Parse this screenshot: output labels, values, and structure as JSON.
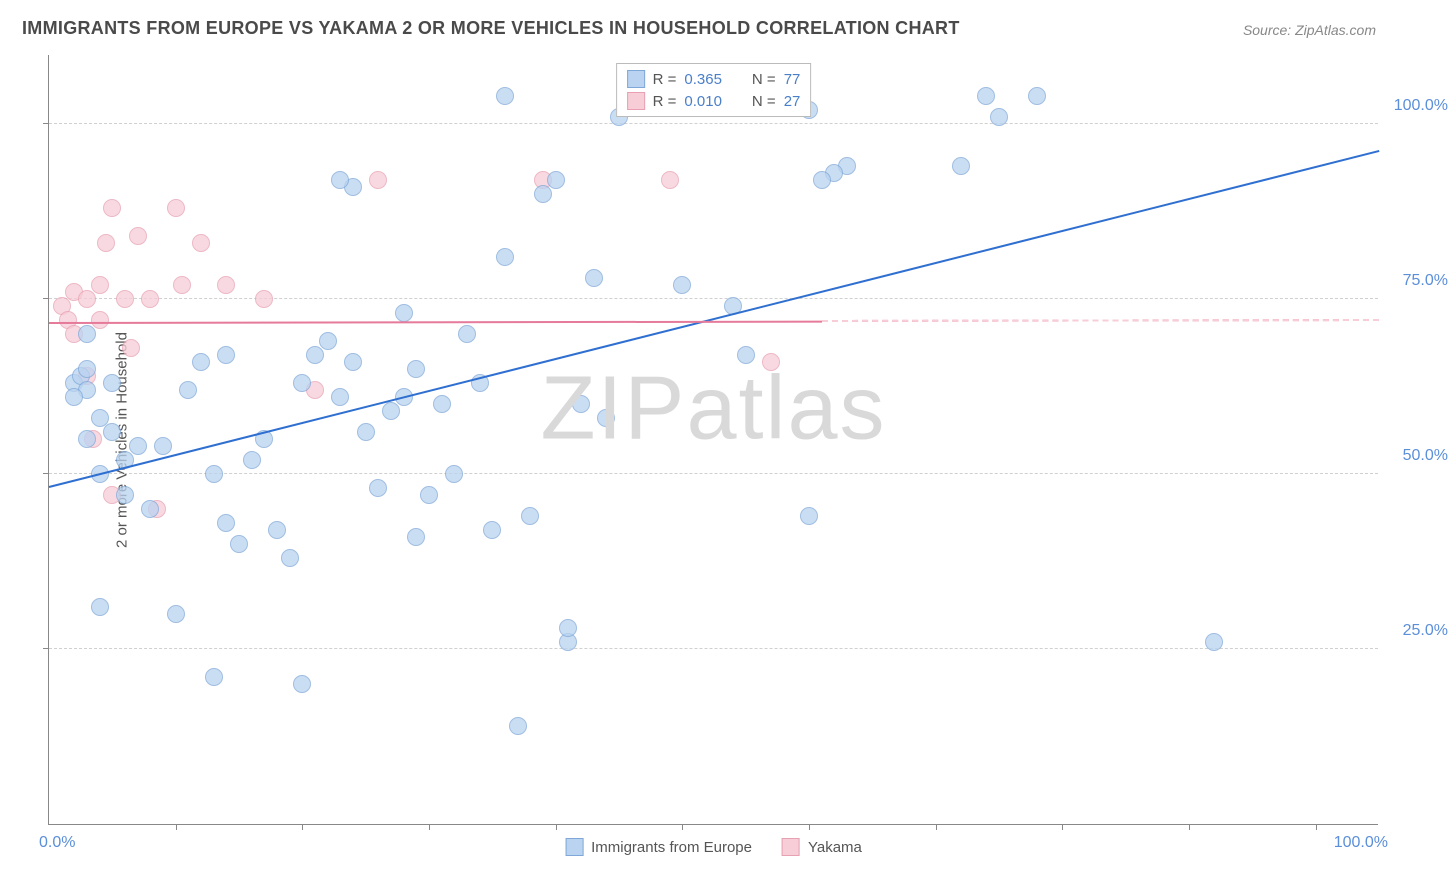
{
  "title": "IMMIGRANTS FROM EUROPE VS YAKAMA 2 OR MORE VEHICLES IN HOUSEHOLD CORRELATION CHART",
  "source_label": "Source:",
  "source_value": "ZipAtlas.com",
  "watermark": {
    "part1": "ZIP",
    "part2": "atlas"
  },
  "y_axis_title": "2 or more Vehicles in Household",
  "x_axis": {
    "min_label": "0.0%",
    "max_label": "100.0%",
    "min": 0,
    "max": 105,
    "tick_positions_pct": [
      10,
      20,
      30,
      40,
      50,
      60,
      70,
      80,
      90,
      100
    ]
  },
  "y_axis": {
    "min": 0,
    "max": 110,
    "gridlines": [
      {
        "value": 25,
        "label": "25.0%"
      },
      {
        "value": 50,
        "label": "50.0%"
      },
      {
        "value": 75,
        "label": "75.0%"
      },
      {
        "value": 100,
        "label": "100.0%"
      }
    ]
  },
  "series": {
    "blue": {
      "name": "Immigrants from Europe",
      "fill": "#b9d3f0",
      "stroke": "#7fa8d8",
      "line_color": "#2f6fd0",
      "marker_radius": 9,
      "marker_opacity": 0.75,
      "R": "0.365",
      "N": "77",
      "trend": {
        "x1": 0,
        "y1": 48,
        "x2": 105,
        "y2": 96,
        "dash_after_x": 105
      },
      "points": [
        [
          2,
          63
        ],
        [
          2.5,
          64
        ],
        [
          3,
          62
        ],
        [
          2,
          61
        ],
        [
          3,
          65
        ],
        [
          3,
          55
        ],
        [
          4,
          50
        ],
        [
          4,
          58
        ],
        [
          3,
          70
        ],
        [
          5,
          56
        ],
        [
          5,
          63
        ],
        [
          6,
          47
        ],
        [
          6,
          52
        ],
        [
          7,
          54
        ],
        [
          8,
          45
        ],
        [
          9,
          54
        ],
        [
          10,
          30
        ],
        [
          4,
          31
        ],
        [
          11,
          62
        ],
        [
          12,
          66
        ],
        [
          13,
          50
        ],
        [
          14,
          43
        ],
        [
          15,
          40
        ],
        [
          16,
          52
        ],
        [
          17,
          55
        ],
        [
          18,
          42
        ],
        [
          19,
          38
        ],
        [
          20,
          63
        ],
        [
          21,
          67
        ],
        [
          22,
          69
        ],
        [
          23,
          61
        ],
        [
          24,
          66
        ],
        [
          13,
          21
        ],
        [
          20,
          20
        ],
        [
          24,
          91
        ],
        [
          25,
          56
        ],
        [
          26,
          48
        ],
        [
          27,
          59
        ],
        [
          28,
          73
        ],
        [
          29,
          65
        ],
        [
          30,
          47
        ],
        [
          31,
          60
        ],
        [
          32,
          50
        ],
        [
          33,
          70
        ],
        [
          34,
          63
        ],
        [
          35,
          42
        ],
        [
          36,
          81
        ],
        [
          36,
          104
        ],
        [
          37,
          14
        ],
        [
          38,
          44
        ],
        [
          39,
          90
        ],
        [
          40,
          92
        ],
        [
          41,
          26
        ],
        [
          41,
          28
        ],
        [
          42,
          60
        ],
        [
          43,
          78
        ],
        [
          44,
          58
        ],
        [
          45,
          101
        ],
        [
          49,
          104
        ],
        [
          50,
          77
        ],
        [
          52,
          104
        ],
        [
          55,
          67
        ],
        [
          54,
          74
        ],
        [
          60,
          44
        ],
        [
          63,
          94
        ],
        [
          62,
          93
        ],
        [
          72,
          94
        ],
        [
          74,
          104
        ],
        [
          75,
          101
        ],
        [
          78,
          104
        ],
        [
          60,
          102
        ],
        [
          92,
          26
        ],
        [
          61,
          92
        ],
        [
          23,
          92
        ],
        [
          29,
          41
        ],
        [
          28,
          61
        ],
        [
          14,
          67
        ]
      ]
    },
    "pink": {
      "name": "Yakama",
      "fill": "#f7cdd7",
      "stroke": "#e7a1b2",
      "line_color": "#e57a9a",
      "marker_radius": 9,
      "marker_opacity": 0.75,
      "R": "0.010",
      "N": "27",
      "trend": {
        "x1": 0,
        "y1": 71.5,
        "x2": 61,
        "y2": 71.7,
        "dash_after_x": 61
      },
      "points": [
        [
          1,
          74
        ],
        [
          1.5,
          72
        ],
        [
          2,
          70
        ],
        [
          2,
          76
        ],
        [
          3,
          75
        ],
        [
          3,
          64
        ],
        [
          3.5,
          55
        ],
        [
          4,
          77
        ],
        [
          4,
          72
        ],
        [
          4.5,
          83
        ],
        [
          5,
          88
        ],
        [
          5,
          47
        ],
        [
          6,
          75
        ],
        [
          6.5,
          68
        ],
        [
          7,
          84
        ],
        [
          8,
          75
        ],
        [
          8.5,
          45
        ],
        [
          10,
          88
        ],
        [
          10.5,
          77
        ],
        [
          12,
          83
        ],
        [
          14,
          77
        ],
        [
          17,
          75
        ],
        [
          21,
          62
        ],
        [
          26,
          92
        ],
        [
          39,
          92
        ],
        [
          49,
          92
        ],
        [
          57,
          66
        ]
      ]
    }
  },
  "legend_top": {
    "R_label": "R =",
    "N_label": "N ="
  },
  "legend_bottom": {
    "blue_label": "Immigrants from Europe",
    "pink_label": "Yakama"
  }
}
